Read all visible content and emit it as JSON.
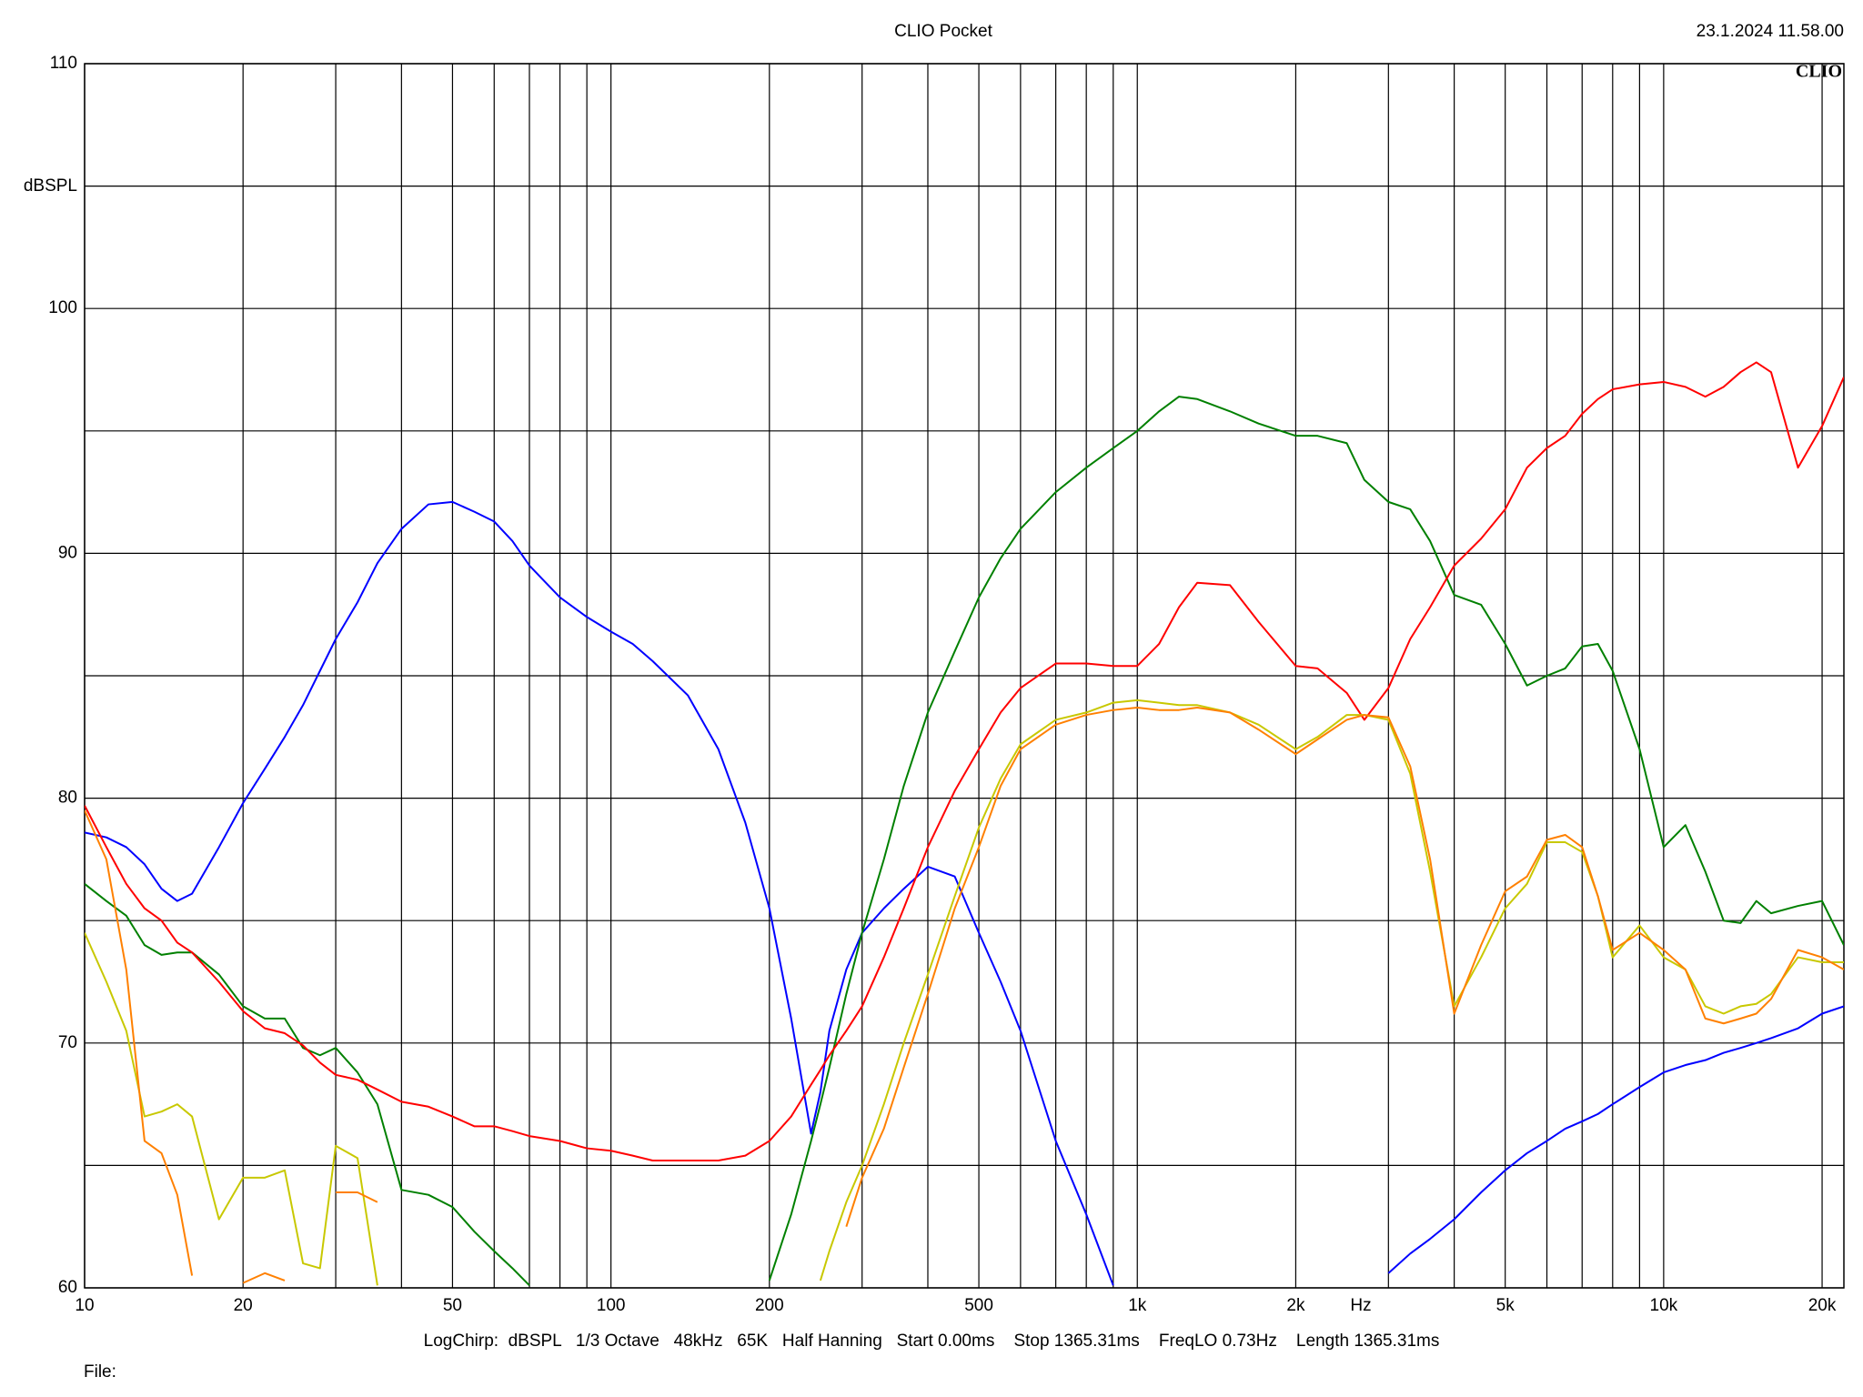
{
  "chart_data": {
    "type": "line",
    "title": "CLIO Pocket",
    "timestamp": "23.1.2024 11.58.00",
    "logo": "CLIO",
    "y_label": "dBSPL",
    "x_label": "Hz",
    "footer": "LogChirp:  dBSPL   1/3 Octave   48kHz   65K   Half Hanning   Start 0.00ms    Stop 1365.31ms    FreqLO 0.73Hz    Length 1365.31ms",
    "file_label": "File:",
    "xscale": "log",
    "grid": true,
    "xlim": [
      10,
      22000
    ],
    "ylim": [
      60,
      110
    ],
    "yticks": [
      60,
      70,
      80,
      90,
      100,
      110
    ],
    "y_minor_ticks": [
      65,
      75,
      85,
      95,
      105
    ],
    "xticks": [
      10,
      20,
      50,
      100,
      200,
      500,
      {
        "value": 1000,
        "label": "1k"
      },
      {
        "value": 2000,
        "label": "2k"
      },
      {
        "value": 5000,
        "label": "5k"
      },
      {
        "value": 10000,
        "label": "10k"
      },
      {
        "value": 20000,
        "label": "20k"
      }
    ],
    "x_minor_ticks": [
      30,
      40,
      60,
      70,
      80,
      90,
      300,
      400,
      600,
      700,
      800,
      900,
      3000,
      4000,
      6000,
      7000,
      8000,
      9000
    ],
    "x": [
      10,
      11,
      12,
      13,
      14,
      15,
      16,
      18,
      20,
      22,
      24,
      26,
      28,
      30,
      33,
      36,
      40,
      45,
      50,
      55,
      60,
      65,
      70,
      80,
      90,
      100,
      110,
      120,
      140,
      160,
      180,
      200,
      220,
      240,
      250,
      260,
      280,
      300,
      330,
      360,
      400,
      450,
      500,
      550,
      600,
      700,
      800,
      900,
      1000,
      1100,
      1200,
      1300,
      1500,
      1700,
      2000,
      2200,
      2500,
      2700,
      3000,
      3300,
      3600,
      4000,
      4500,
      5000,
      5500,
      6000,
      6500,
      7000,
      7500,
      8000,
      9000,
      10000,
      11000,
      12000,
      13000,
      14000,
      15000,
      16000,
      18000,
      20000,
      22000
    ],
    "series": [
      {
        "color": "#0000ff",
        "values": [
          78.6,
          78.4,
          78,
          77.3,
          76.3,
          75.8,
          76.1,
          78,
          79.8,
          81.2,
          82.5,
          83.8,
          85.2,
          86.5,
          88,
          89.6,
          91,
          92,
          92.1,
          91.7,
          91.3,
          90.5,
          89.5,
          88.2,
          87.4,
          86.8,
          86.3,
          85.6,
          84.2,
          82,
          79,
          75.5,
          71,
          66.3,
          68,
          70.5,
          73,
          74.5,
          75.5,
          76.3,
          77.2,
          76.8,
          74.5,
          72.5,
          70.5,
          66,
          63,
          60.1,
          null,
          null,
          null,
          null,
          null,
          null,
          null,
          null,
          null,
          null,
          60.6,
          61.4,
          62,
          62.8,
          63.9,
          64.8,
          65.5,
          66,
          66.5,
          66.8,
          67.1,
          67.5,
          68.2,
          68.8,
          69.1,
          69.3,
          69.6,
          69.8,
          70,
          70.2,
          70.6,
          71.2,
          71.5
        ]
      },
      {
        "color": "#008000",
        "values": [
          76.5,
          75.8,
          75.2,
          74,
          73.6,
          73.7,
          73.7,
          72.8,
          71.5,
          71,
          71,
          69.8,
          69.5,
          69.8,
          68.8,
          67.5,
          64,
          63.8,
          63.3,
          62.3,
          61.5,
          60.8,
          60.1,
          null,
          null,
          null,
          null,
          null,
          null,
          null,
          null,
          60.3,
          63,
          66,
          67.5,
          69,
          72,
          74.5,
          77.5,
          80.5,
          83.5,
          86,
          88.2,
          89.8,
          91,
          92.5,
          93.5,
          94.3,
          95,
          95.8,
          96.4,
          96.3,
          95.8,
          95.3,
          94.8,
          94.8,
          94.5,
          93,
          92.1,
          91.8,
          90.5,
          88.3,
          87.9,
          86.3,
          84.6,
          85,
          85.3,
          86.2,
          86.3,
          85.2,
          82,
          78,
          78.9,
          77,
          75,
          74.9,
          75.8,
          75.3,
          75.6,
          75.8,
          74
        ]
      },
      {
        "color": "#ff0000",
        "values": [
          79.7,
          78,
          76.5,
          75.5,
          75,
          74.1,
          73.7,
          72.5,
          71.3,
          70.6,
          70.4,
          69.9,
          69.2,
          68.7,
          68.5,
          68.1,
          67.6,
          67.4,
          67,
          66.6,
          66.6,
          66.4,
          66.2,
          66,
          65.7,
          65.6,
          65.4,
          65.2,
          65.2,
          65.2,
          65.4,
          66,
          67,
          68.3,
          68.9,
          69.5,
          70.5,
          71.5,
          73.5,
          75.5,
          78,
          80.3,
          82,
          83.5,
          84.5,
          85.5,
          85.5,
          85.4,
          85.4,
          86.3,
          87.8,
          88.8,
          88.7,
          87.2,
          85.4,
          85.3,
          84.3,
          83.2,
          84.5,
          86.5,
          87.8,
          89.5,
          90.6,
          91.8,
          93.5,
          94.3,
          94.8,
          95.7,
          96.3,
          96.7,
          96.9,
          97,
          96.8,
          96.4,
          96.8,
          97.4,
          97.8,
          97.4,
          93.5,
          95.2,
          97.2
        ]
      },
      {
        "color": "#c8c800",
        "values": [
          74.5,
          72.5,
          70.5,
          67,
          67.2,
          67.5,
          67,
          62.8,
          64.5,
          64.5,
          64.8,
          61,
          60.8,
          65.8,
          65.3,
          60.1,
          null,
          null,
          null,
          null,
          null,
          null,
          null,
          null,
          null,
          null,
          null,
          null,
          null,
          null,
          null,
          null,
          null,
          null,
          60.3,
          61.5,
          63.5,
          65,
          67.5,
          70,
          72.8,
          76,
          78.8,
          80.8,
          82.2,
          83.2,
          83.5,
          83.9,
          84,
          83.9,
          83.8,
          83.8,
          83.5,
          83,
          82,
          82.5,
          83.4,
          83.4,
          83.2,
          81,
          77,
          71.5,
          73.5,
          75.5,
          76.5,
          78.2,
          78.2,
          77.8,
          76,
          73.5,
          74.8,
          73.5,
          73,
          71.5,
          71.2,
          71.5,
          71.6,
          72,
          73.5,
          73.3,
          73.3
        ]
      },
      {
        "color": "#ff8000",
        "values": [
          79.5,
          77.5,
          73,
          66,
          65.5,
          63.8,
          60.5,
          null,
          60.2,
          60.6,
          60.3,
          null,
          null,
          63.9,
          63.9,
          63.5,
          null,
          null,
          null,
          null,
          null,
          null,
          null,
          null,
          null,
          null,
          null,
          null,
          null,
          null,
          null,
          null,
          null,
          null,
          null,
          null,
          62.5,
          64.5,
          66.5,
          69,
          72,
          75.5,
          78,
          80.5,
          82,
          83,
          83.4,
          83.6,
          83.7,
          83.6,
          83.6,
          83.7,
          83.5,
          82.8,
          81.8,
          82.4,
          83.2,
          83.4,
          83.3,
          81.3,
          77.5,
          71.2,
          74,
          76.2,
          76.8,
          78.3,
          78.5,
          78,
          76,
          73.8,
          74.5,
          73.8,
          73,
          71,
          70.8,
          71,
          71.2,
          71.8,
          73.8,
          73.5,
          73
        ]
      }
    ]
  }
}
